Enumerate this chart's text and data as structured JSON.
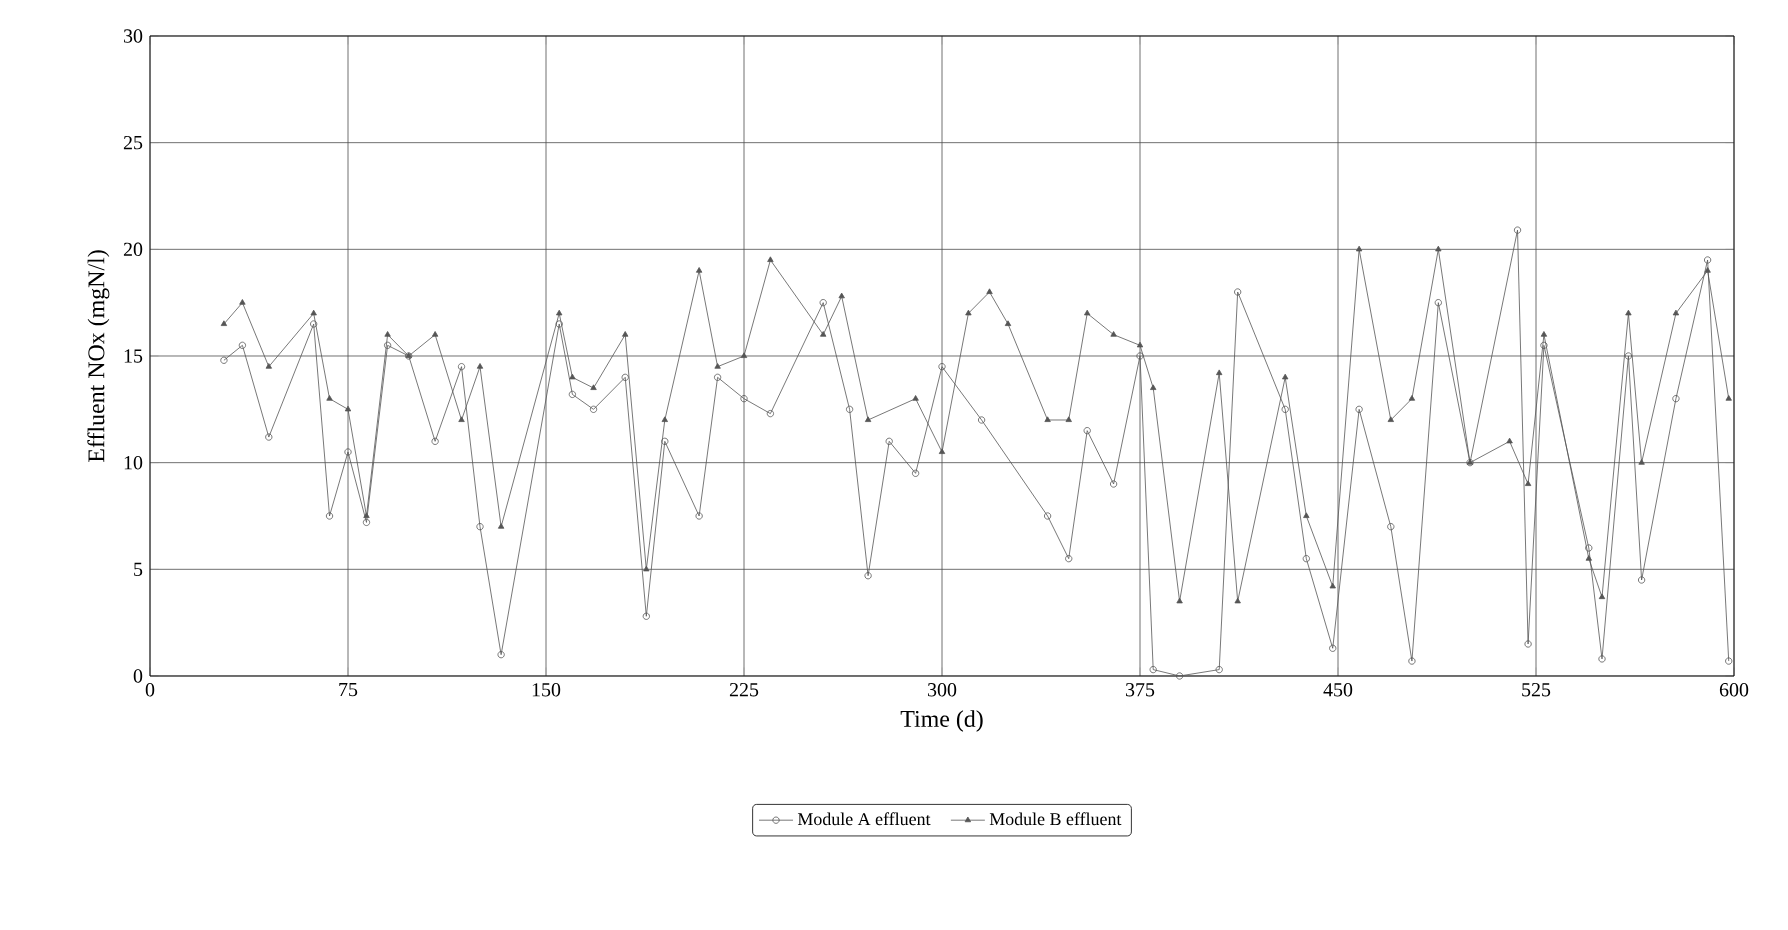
{
  "chart_data": {
    "type": "line",
    "xlabel": "Time (d)",
    "ylabel": "Effluent NOx (mgN/l)",
    "xlim": [
      0,
      600
    ],
    "xticks": [
      0,
      75,
      150,
      225,
      300,
      375,
      450,
      525,
      600
    ],
    "ylim": [
      0,
      30
    ],
    "yticks": [
      0,
      5,
      10,
      15,
      20,
      25,
      30
    ],
    "grid": true,
    "legend": "bottom",
    "line_style": "solid",
    "series": [
      {
        "name": "Module A effluent",
        "color": "#555555",
        "marker": "circle",
        "x": [
          28,
          35,
          45,
          62,
          68,
          75,
          82,
          90,
          98,
          108,
          118,
          125,
          133,
          155,
          160,
          168,
          180,
          188,
          195,
          208,
          215,
          225,
          235,
          255,
          265,
          272,
          280,
          290,
          300,
          315,
          340,
          348,
          355,
          365,
          375,
          380,
          390,
          405,
          412,
          430,
          438,
          448,
          458,
          470,
          478,
          488,
          500,
          518,
          522,
          528,
          545,
          550,
          560,
          565,
          578,
          590,
          598
        ],
        "values": [
          14.8,
          15.5,
          11.2,
          16.5,
          7.5,
          10.5,
          7.2,
          15.5,
          15,
          11,
          14.5,
          7,
          1,
          16.5,
          13.2,
          12.5,
          14,
          2.8,
          11,
          7.5,
          14,
          13,
          12.3,
          17.5,
          12.5,
          4.7,
          11,
          9.5,
          14.5,
          12,
          7.5,
          5.5,
          11.5,
          9,
          15,
          0.3,
          0,
          0.3,
          18,
          12.5,
          5.5,
          1.3,
          12.5,
          7,
          0.7,
          17.5,
          10,
          20.9,
          1.5,
          15.5,
          6,
          0.8,
          15,
          4.5,
          13,
          19.5,
          0.7
        ]
      },
      {
        "name": "Module B effluent",
        "color": "#555555",
        "marker": "triangle",
        "x": [
          28,
          35,
          45,
          62,
          68,
          75,
          82,
          90,
          98,
          108,
          118,
          125,
          133,
          155,
          160,
          168,
          180,
          188,
          195,
          208,
          215,
          225,
          235,
          255,
          262,
          272,
          290,
          300,
          310,
          318,
          325,
          340,
          348,
          355,
          365,
          375,
          380,
          390,
          405,
          412,
          430,
          438,
          448,
          458,
          470,
          478,
          488,
          500,
          515,
          522,
          528,
          545,
          550,
          560,
          565,
          578,
          590,
          598
        ],
        "values": [
          16.5,
          17.5,
          14.5,
          17,
          13,
          12.5,
          7.5,
          16,
          15,
          16,
          12,
          14.5,
          7,
          17,
          14,
          13.5,
          16,
          5,
          12,
          19,
          14.5,
          15,
          19.5,
          16,
          17.8,
          12,
          13,
          10.5,
          17,
          18,
          16.5,
          12,
          12,
          17,
          16,
          15.5,
          13.5,
          3.5,
          14.2,
          3.5,
          14,
          7.5,
          4.2,
          20,
          12,
          13,
          20,
          10,
          11,
          9,
          16,
          5.5,
          3.7,
          17,
          10,
          17,
          19,
          13
        ]
      }
    ]
  }
}
